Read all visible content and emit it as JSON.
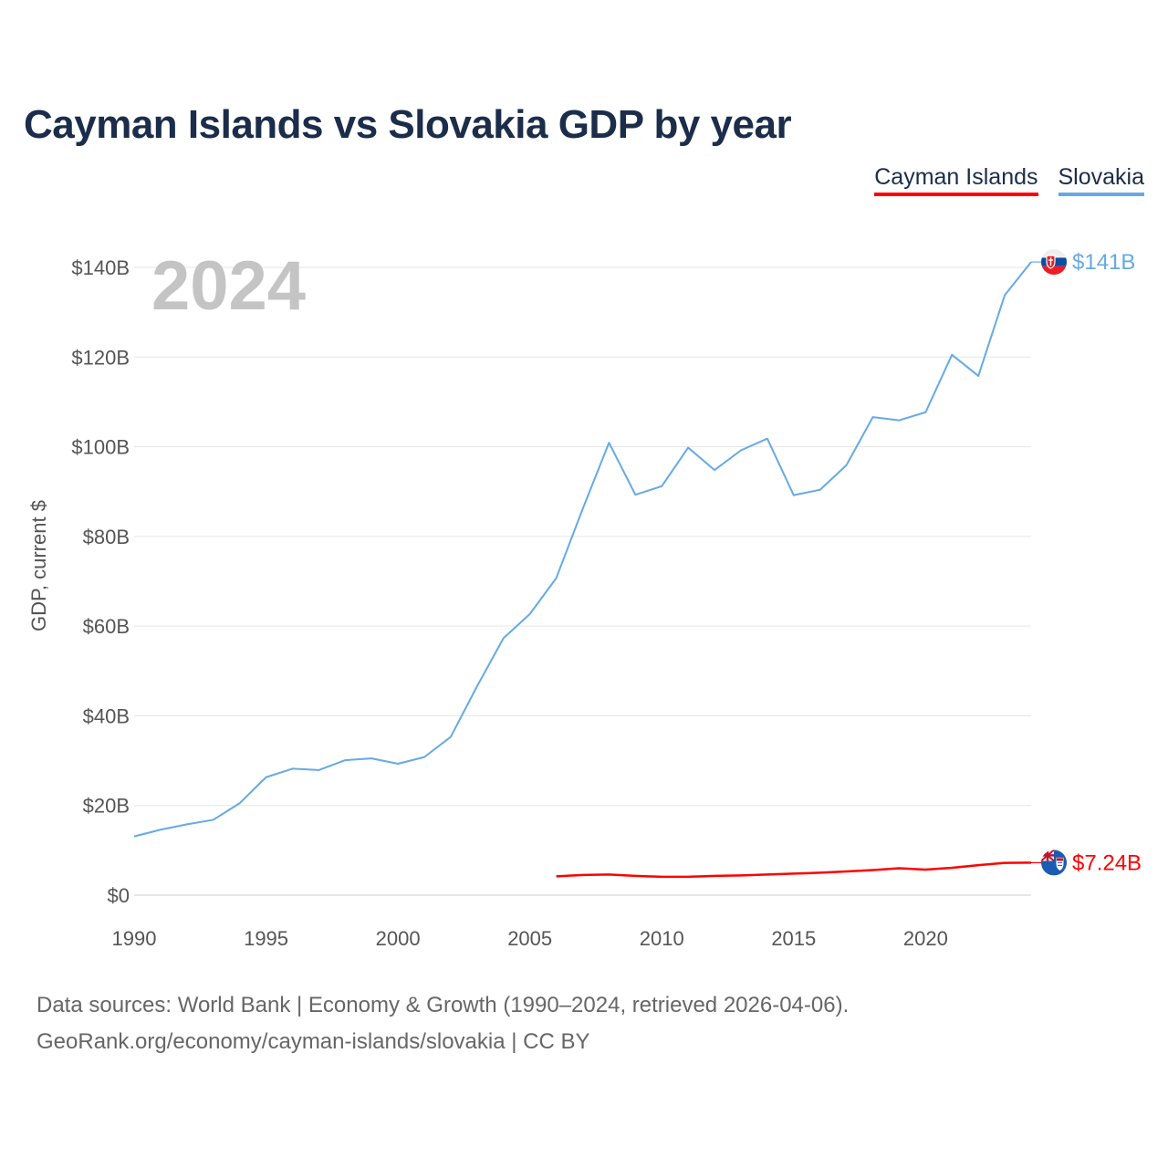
{
  "title": "Cayman Islands vs Slovakia GDP by year",
  "legend": [
    {
      "label": "Cayman Islands",
      "color": "#ff0000"
    },
    {
      "label": "Slovakia",
      "color": "#66a9e6"
    }
  ],
  "year_display": "2024",
  "source_line1": "Data sources: World Bank | Economy & Growth (1990–2024, retrieved 2026-04-06).",
  "source_line2": "GeoRank.org/economy/cayman-islands/slovakia | CC BY",
  "chart_data": {
    "type": "line",
    "title": "Cayman Islands vs Slovakia GDP by year",
    "xlabel": "",
    "ylabel": "GDP, current $",
    "xlim": [
      1990,
      2024
    ],
    "ylim": [
      0,
      140
    ],
    "y_unit": "billion USD",
    "x_ticks": [
      1990,
      1995,
      2000,
      2005,
      2010,
      2015,
      2020
    ],
    "y_ticks": [
      0,
      20,
      40,
      60,
      80,
      100,
      120,
      140
    ],
    "y_tick_labels": [
      "$0",
      "$20B",
      "$40B",
      "$60B",
      "$80B",
      "$100B",
      "$120B",
      "$140B"
    ],
    "grid": true,
    "legend_position": "top-right",
    "series": [
      {
        "name": "Slovakia",
        "color": "#66a9e6",
        "end_label": "$141B",
        "flag_icon": "slovakia-flag-icon",
        "x": [
          1990,
          1991,
          1992,
          1993,
          1994,
          1995,
          1996,
          1997,
          1998,
          1999,
          2000,
          2001,
          2002,
          2003,
          2004,
          2005,
          2006,
          2007,
          2008,
          2009,
          2010,
          2011,
          2012,
          2013,
          2014,
          2015,
          2016,
          2017,
          2018,
          2019,
          2020,
          2021,
          2022,
          2023,
          2024
        ],
        "y": [
          13.1,
          14.6,
          15.8,
          16.8,
          20.5,
          26.3,
          28.2,
          27.9,
          30.1,
          30.5,
          29.3,
          30.8,
          35.3,
          46.6,
          57.3,
          62.7,
          70.7,
          86.1,
          100.9,
          89.3,
          91.2,
          99.8,
          94.8,
          99.2,
          101.8,
          89.2,
          90.4,
          95.9,
          106.6,
          105.9,
          107.7,
          120.5,
          115.8,
          133.8,
          141.2
        ]
      },
      {
        "name": "Cayman Islands",
        "color": "#ff0000",
        "end_label": "$7.24B",
        "flag_icon": "cayman-islands-flag-icon",
        "x": [
          2006,
          2007,
          2008,
          2009,
          2010,
          2011,
          2012,
          2013,
          2014,
          2015,
          2016,
          2017,
          2018,
          2019,
          2020,
          2021,
          2022,
          2023,
          2024
        ],
        "y": [
          4.2,
          4.5,
          4.6,
          4.3,
          4.1,
          4.1,
          4.3,
          4.4,
          4.6,
          4.8,
          5.0,
          5.3,
          5.6,
          6.0,
          5.7,
          6.1,
          6.7,
          7.2,
          7.24
        ]
      }
    ]
  }
}
